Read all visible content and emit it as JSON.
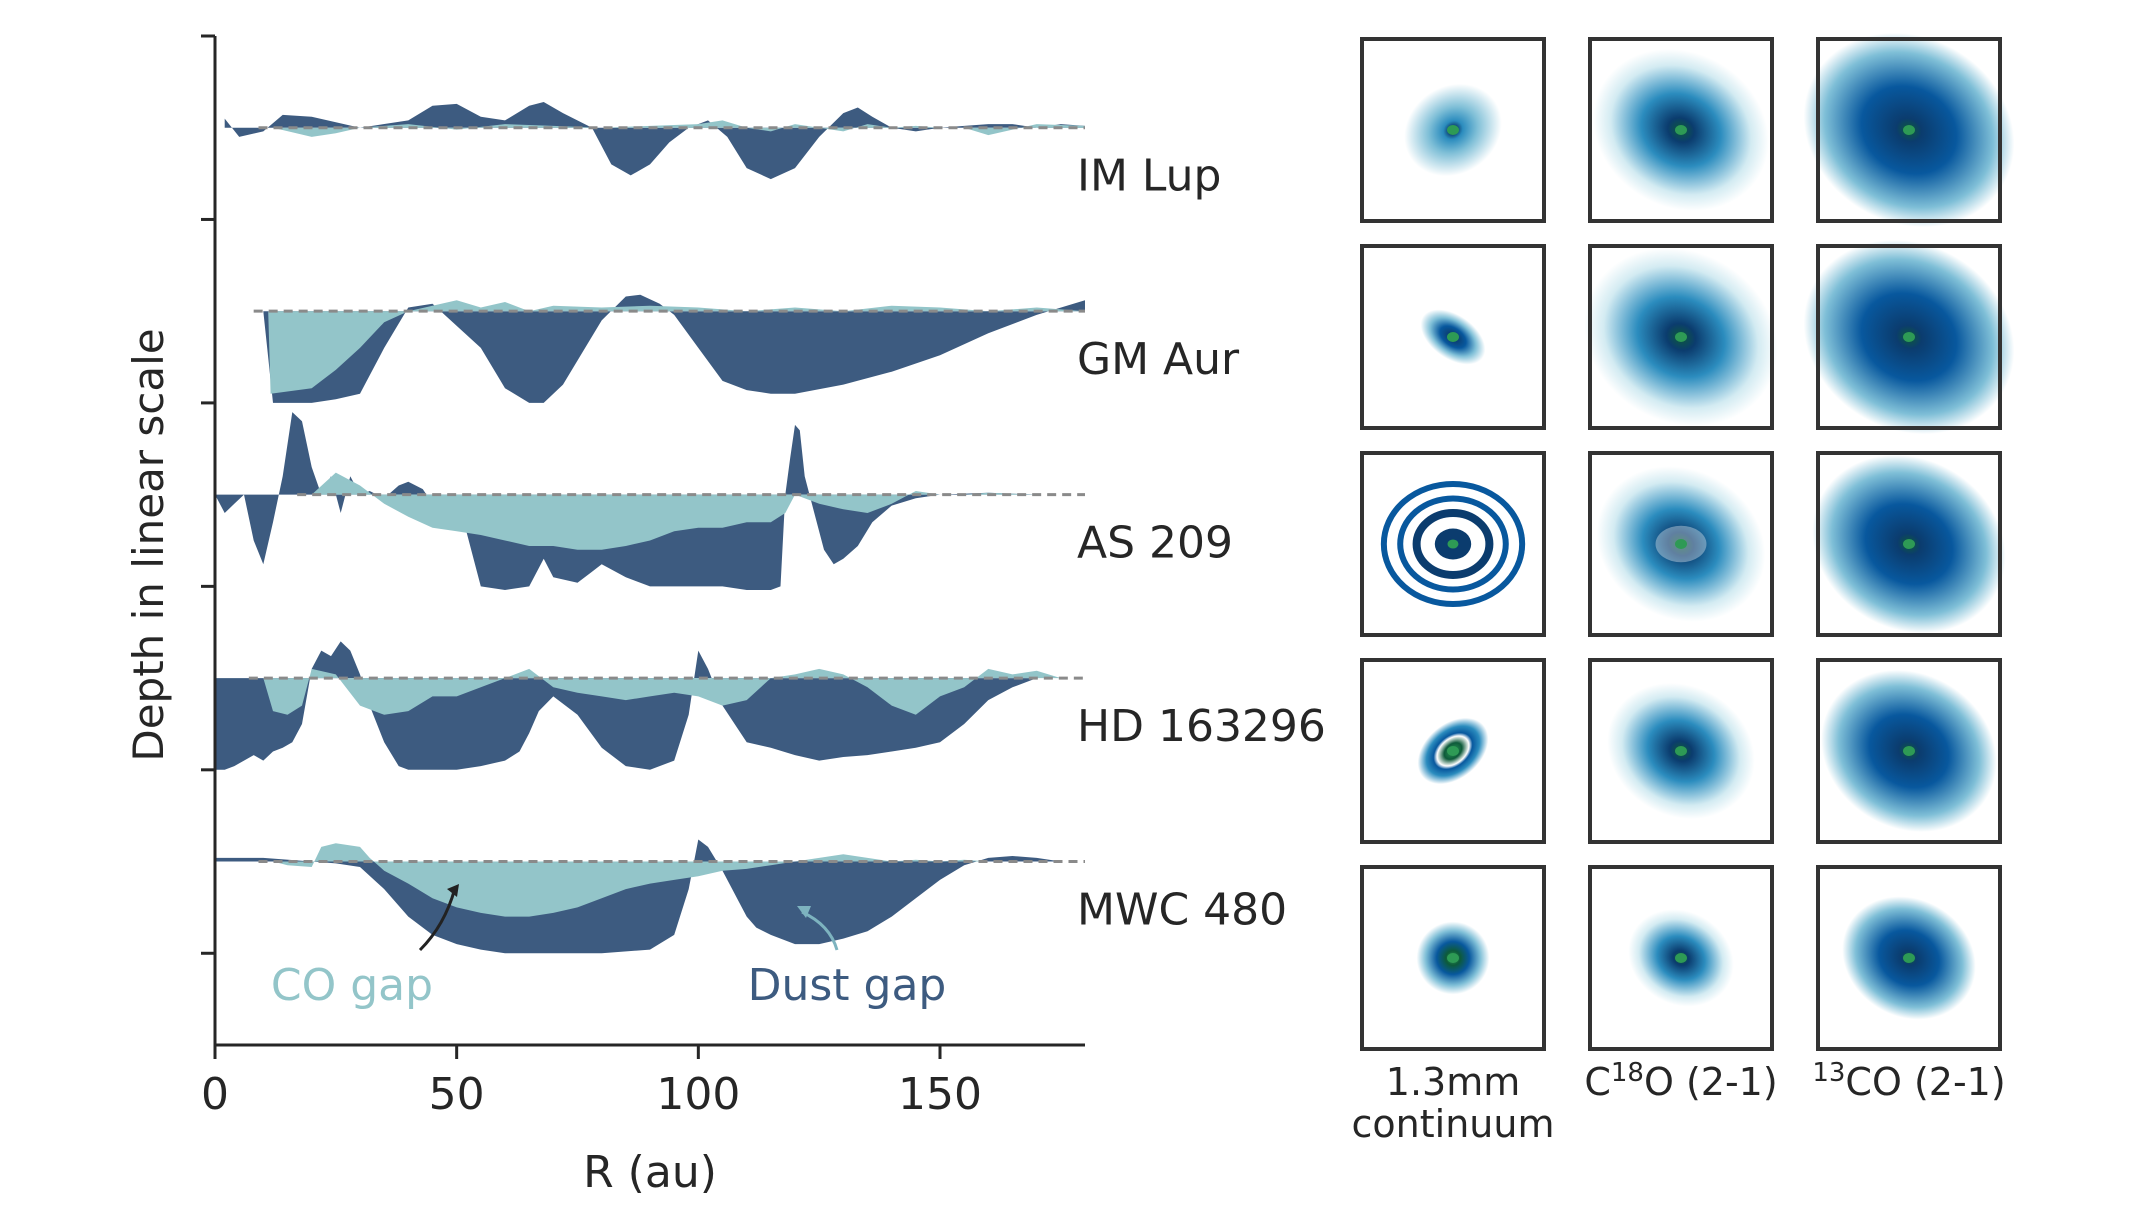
{
  "colors": {
    "dust": "#3d5b80",
    "co": "#93c5c9",
    "axis": "#262626",
    "baseline": "#8a8a8a",
    "panel_border": "#333333",
    "image_cmap": [
      "#ffffff",
      "#d3ebf2",
      "#7fbfd7",
      "#2b8cbe",
      "#08589e",
      "#0b3c6e",
      "#0d5a3a",
      "#2e9a55"
    ]
  },
  "chart_data": [
    {
      "type": "area",
      "title": "",
      "xlabel": "R (au)",
      "ylabel": "Depth in linear scale",
      "xlim": [
        0,
        180
      ],
      "xticks": [
        0,
        50,
        100,
        150
      ],
      "xtick_labels": [
        "0",
        "50",
        "100",
        "150"
      ],
      "ylim": [
        -5.0,
        0.5
      ],
      "yticks": [
        -4.5,
        -3.5,
        -2.5,
        -1.5,
        -0.5,
        0.5
      ],
      "grid": false,
      "series_note_colors": [
        "dust",
        "co"
      ],
      "annotations": [
        {
          "text": "CO gap",
          "at_x": 50,
          "color": "co"
        },
        {
          "text": "Dust gap",
          "at_x": 121,
          "color": "dust"
        }
      ],
      "disks": [
        {
          "name": "IM Lup",
          "offset": 0,
          "dust": {
            "x": [
              2,
              5,
              10,
              14,
              20,
              30,
              40,
              45,
              50,
              55,
              60,
              65,
              68,
              72,
              78,
              82,
              86,
              90,
              94,
              98,
              102,
              106,
              110,
              115,
              120,
              125,
              130,
              133,
              136,
              140,
              145,
              150,
              155,
              160,
              165,
              170,
              175,
              180
            ],
            "y": [
              0.05,
              -0.05,
              -0.02,
              0.07,
              0.06,
              0.0,
              0.04,
              0.12,
              0.13,
              0.06,
              0.04,
              0.12,
              0.14,
              0.08,
              0.0,
              -0.2,
              -0.26,
              -0.2,
              -0.08,
              0.0,
              0.04,
              -0.05,
              -0.22,
              -0.28,
              -0.22,
              -0.05,
              0.08,
              0.11,
              0.06,
              0.0,
              -0.02,
              0.0,
              0.01,
              0.02,
              0.02,
              0.0,
              0.02,
              0.01
            ]
          },
          "co": {
            "x": [
              12,
              20,
              25,
              30,
              40,
              50,
              60,
              70,
              80,
              90,
              100,
              105,
              110,
              115,
              120,
              125,
              130,
              135,
              140,
              145,
              150,
              155,
              160,
              170,
              180
            ],
            "y": [
              0.0,
              -0.05,
              -0.03,
              0.0,
              0.02,
              -0.01,
              0.02,
              0.01,
              0.0,
              0.01,
              0.02,
              0.04,
              0.0,
              -0.02,
              0.02,
              0.0,
              -0.02,
              0.02,
              0.0,
              0.01,
              0.0,
              0.0,
              -0.04,
              0.02,
              0.01
            ]
          }
        },
        {
          "name": "GM Aur",
          "offset": -1,
          "dust": {
            "x": [
              0,
              10,
              12,
              20,
              25,
              30,
              35,
              40,
              45,
              55,
              60,
              65,
              68,
              72,
              80,
              85,
              88,
              92,
              95,
              100,
              105,
              110,
              115,
              120,
              130,
              140,
              150,
              160,
              170,
              180
            ],
            "y": [
              0.0,
              0.0,
              -0.5,
              -0.5,
              -0.48,
              -0.45,
              -0.2,
              0.02,
              0.04,
              -0.2,
              -0.42,
              -0.5,
              -0.5,
              -0.4,
              -0.05,
              0.08,
              0.09,
              0.04,
              -0.02,
              -0.2,
              -0.38,
              -0.43,
              -0.45,
              -0.45,
              -0.4,
              -0.33,
              -0.24,
              -0.12,
              -0.02,
              0.06
            ]
          },
          "co": {
            "x": [
              11,
              11.5,
              20,
              25,
              30,
              35,
              40,
              45,
              50,
              55,
              60,
              65,
              70,
              80,
              90,
              100,
              110,
              120,
              130,
              140,
              150,
              160,
              170,
              180
            ],
            "y": [
              0.0,
              -0.45,
              -0.42,
              -0.32,
              -0.2,
              -0.06,
              0.0,
              0.03,
              0.06,
              0.02,
              0.05,
              0.0,
              0.03,
              0.02,
              0.03,
              0.02,
              0.0,
              0.02,
              0.0,
              0.03,
              0.02,
              0.0,
              0.02,
              0.0
            ]
          }
        },
        {
          "name": "AS 209",
          "offset": -2,
          "dust": {
            "x": [
              0,
              2,
              4,
              6,
              8,
              10,
              12,
              14,
              16,
              18,
              20,
              22,
              24,
              26,
              28,
              30,
              32,
              35,
              38,
              40,
              43,
              45,
              50,
              52,
              55,
              60,
              65,
              68,
              70,
              75,
              78,
              80,
              85,
              90,
              95,
              100,
              105,
              110,
              115,
              117,
              118,
              119,
              120,
              121,
              122,
              124,
              126,
              128,
              130,
              133,
              136,
              140,
              145,
              150,
              160,
              170,
              180
            ],
            "y": [
              0.0,
              -0.1,
              -0.05,
              0.0,
              -0.25,
              -0.38,
              -0.15,
              0.1,
              0.45,
              0.4,
              0.15,
              0.0,
              0.1,
              -0.1,
              0.1,
              0.0,
              0.02,
              -0.02,
              0.05,
              0.07,
              0.03,
              -0.05,
              -0.1,
              -0.2,
              -0.5,
              -0.52,
              -0.5,
              -0.35,
              -0.45,
              -0.48,
              -0.42,
              -0.38,
              -0.45,
              -0.5,
              -0.5,
              -0.5,
              -0.5,
              -0.52,
              -0.52,
              -0.5,
              0.0,
              0.2,
              0.38,
              0.35,
              0.1,
              -0.1,
              -0.3,
              -0.38,
              -0.35,
              -0.28,
              -0.15,
              -0.06,
              -0.02,
              0.0,
              0.01,
              0.0,
              0.0
            ]
          },
          "co": {
            "x": [
              20,
              25,
              30,
              35,
              40,
              45,
              50,
              55,
              60,
              65,
              70,
              75,
              80,
              85,
              90,
              95,
              100,
              105,
              110,
              115,
              118,
              120,
              125,
              130,
              135,
              140,
              145,
              150,
              155,
              160,
              170,
              180
            ],
            "y": [
              0.0,
              0.12,
              0.05,
              -0.05,
              -0.12,
              -0.18,
              -0.2,
              -0.22,
              -0.25,
              -0.28,
              -0.28,
              -0.3,
              -0.3,
              -0.28,
              -0.25,
              -0.2,
              -0.18,
              -0.18,
              -0.15,
              -0.15,
              -0.1,
              0.0,
              -0.05,
              -0.08,
              -0.1,
              -0.05,
              0.02,
              0.0,
              0.0,
              0.01,
              0.0,
              0.0
            ]
          }
        },
        {
          "name": "HD 163296",
          "offset": -3,
          "dust": {
            "x": [
              0,
              2,
              4,
              6,
              8,
              10,
              12,
              14,
              16,
              18,
              20,
              22,
              24,
              26,
              28,
              30,
              32,
              35,
              38,
              40,
              45,
              50,
              55,
              60,
              63,
              65,
              67,
              70,
              75,
              80,
              85,
              90,
              95,
              98,
              100,
              102,
              105,
              110,
              115,
              120,
              125,
              130,
              135,
              140,
              145,
              150,
              155,
              160,
              165,
              170,
              175,
              180
            ],
            "y": [
              -0.5,
              -0.5,
              -0.48,
              -0.45,
              -0.42,
              -0.45,
              -0.4,
              -0.38,
              -0.35,
              -0.25,
              0.05,
              0.15,
              0.12,
              0.2,
              0.15,
              0.02,
              -0.15,
              -0.35,
              -0.48,
              -0.5,
              -0.5,
              -0.5,
              -0.48,
              -0.45,
              -0.4,
              -0.3,
              -0.18,
              -0.1,
              -0.2,
              -0.38,
              -0.48,
              -0.5,
              -0.45,
              -0.2,
              0.15,
              0.05,
              -0.15,
              -0.35,
              -0.38,
              -0.42,
              -0.45,
              -0.43,
              -0.42,
              -0.4,
              -0.38,
              -0.35,
              -0.25,
              -0.12,
              -0.05,
              0.0,
              0.0,
              0.0
            ]
          },
          "co": {
            "x": [
              10,
              12,
              15,
              18,
              20,
              25,
              30,
              35,
              40,
              45,
              50,
              55,
              60,
              65,
              70,
              75,
              80,
              85,
              90,
              95,
              100,
              105,
              110,
              115,
              120,
              125,
              130,
              135,
              140,
              145,
              150,
              155,
              160,
              165,
              170,
              175,
              180
            ],
            "y": [
              0.0,
              -0.18,
              -0.2,
              -0.15,
              0.05,
              0.02,
              -0.15,
              -0.2,
              -0.18,
              -0.1,
              -0.1,
              -0.05,
              0.0,
              0.05,
              -0.05,
              -0.08,
              -0.1,
              -0.12,
              -0.1,
              -0.08,
              -0.1,
              -0.15,
              -0.12,
              0.0,
              0.02,
              0.05,
              0.02,
              -0.05,
              -0.15,
              -0.2,
              -0.1,
              -0.05,
              0.05,
              0.02,
              0.04,
              0.0,
              0.0
            ]
          }
        },
        {
          "name": "MWC 480",
          "offset": -4,
          "dust": {
            "x": [
              0,
              10,
              20,
              25,
              30,
              35,
              40,
              45,
              50,
              55,
              60,
              70,
              80,
              90,
              95,
              98,
              100,
              102,
              105,
              108,
              110,
              112,
              115,
              120,
              125,
              130,
              135,
              140,
              145,
              150,
              155,
              160,
              165,
              170,
              175,
              180
            ],
            "y": [
              0.02,
              0.02,
              0.0,
              -0.01,
              -0.03,
              -0.15,
              -0.3,
              -0.4,
              -0.45,
              -0.48,
              -0.5,
              -0.5,
              -0.5,
              -0.48,
              -0.4,
              -0.15,
              0.12,
              0.08,
              -0.05,
              -0.2,
              -0.3,
              -0.36,
              -0.4,
              -0.45,
              -0.45,
              -0.42,
              -0.38,
              -0.3,
              -0.2,
              -0.1,
              -0.02,
              0.02,
              0.03,
              0.02,
              0.0,
              0.0
            ]
          },
          "co": {
            "x": [
              12,
              15,
              20,
              22,
              25,
              30,
              32,
              35,
              40,
              45,
              50,
              55,
              60,
              65,
              70,
              75,
              80,
              85,
              90,
              95,
              100,
              105,
              110,
              115,
              120,
              125,
              130,
              135,
              140,
              145,
              150,
              155,
              160,
              165,
              170,
              175,
              180
            ],
            "y": [
              0.0,
              -0.02,
              -0.03,
              0.08,
              0.1,
              0.08,
              0.02,
              -0.05,
              -0.12,
              -0.2,
              -0.25,
              -0.28,
              -0.3,
              -0.3,
              -0.28,
              -0.25,
              -0.2,
              -0.15,
              -0.12,
              -0.1,
              -0.08,
              -0.05,
              -0.04,
              -0.02,
              0.0,
              0.02,
              0.04,
              0.02,
              0.0,
              0.01,
              0.0,
              0.01,
              0.0,
              0.0,
              0.0,
              0.0,
              0.0
            ]
          }
        }
      ]
    },
    {
      "type": "image_grid",
      "columns": [
        {
          "key": "continuum",
          "label_lines": [
            "1.3mm",
            "continuum"
          ]
        },
        {
          "key": "c18o",
          "label_pre": "C",
          "label_sup": "18",
          "label_post": "O (2-1)"
        },
        {
          "key": "13co",
          "label_pre": "",
          "label_sup": "13",
          "label_post": "CO (2-1)"
        }
      ],
      "rows": [
        "IM Lup",
        "GM Aur",
        "AS 209",
        "HD 163296",
        "MWC 480"
      ]
    }
  ]
}
